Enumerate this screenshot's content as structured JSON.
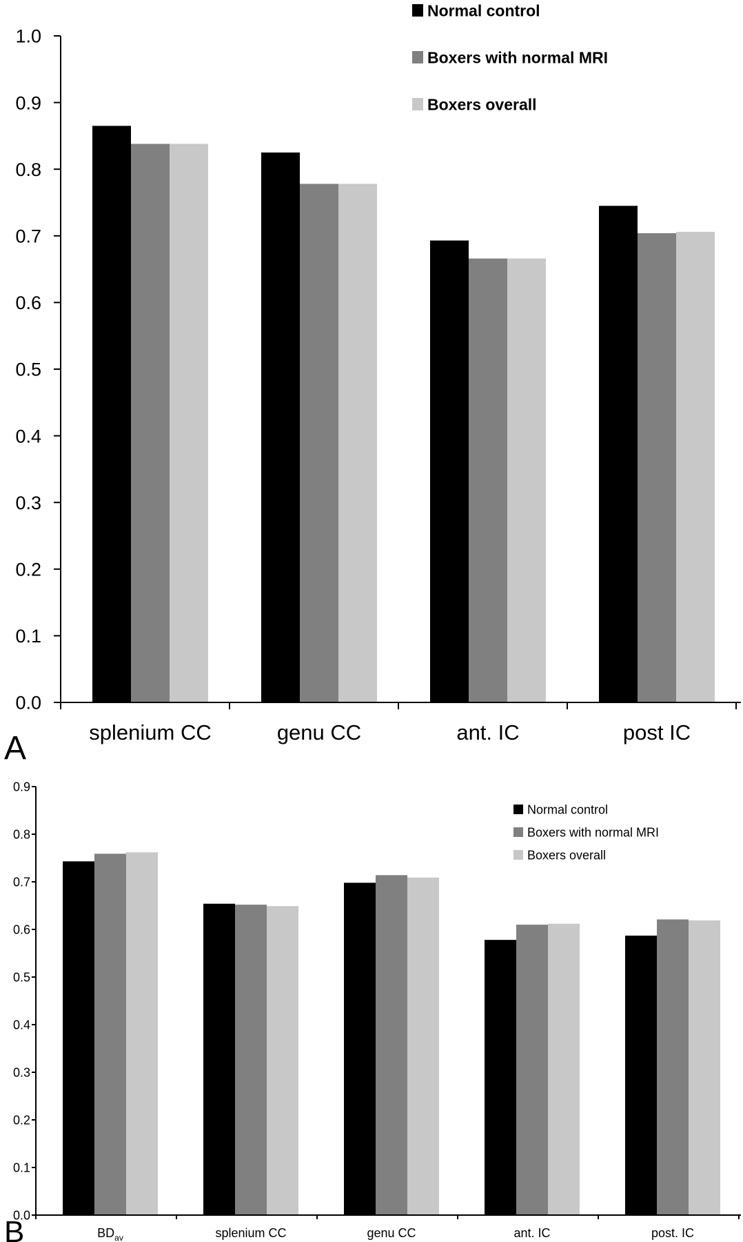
{
  "chart_data": [
    {
      "type": "bar",
      "panel_label": "A",
      "categories": [
        "splenium CC",
        "genu CC",
        "ant. IC",
        "post IC"
      ],
      "series": [
        {
          "name": "Normal control",
          "color": "#000000",
          "values": [
            0.865,
            0.825,
            0.693,
            0.745
          ]
        },
        {
          "name": "Boxers with normal MRI",
          "color": "#808080",
          "values": [
            0.838,
            0.778,
            0.666,
            0.704
          ]
        },
        {
          "name": "Boxers overall",
          "color": "#c8c8c8",
          "values": [
            0.838,
            0.778,
            0.666,
            0.706
          ]
        }
      ],
      "ylim": [
        0,
        1.0
      ],
      "yticks": [
        "0.0",
        "0.1",
        "0.2",
        "0.3",
        "0.4",
        "0.5",
        "0.6",
        "0.7",
        "0.8",
        "0.9",
        "1.0"
      ],
      "grid": false,
      "legend": "top-right"
    },
    {
      "type": "bar",
      "panel_label": "B",
      "categories": [
        "BD",
        "splenium CC",
        "genu CC",
        "ant. IC",
        "post. IC"
      ],
      "category_subscripts": [
        "av",
        "",
        "",
        "",
        ""
      ],
      "series": [
        {
          "name": "Normal control",
          "color": "#000000",
          "values": [
            0.743,
            0.654,
            0.698,
            0.578,
            0.587
          ]
        },
        {
          "name": "Boxers with normal MRI",
          "color": "#808080",
          "values": [
            0.759,
            0.652,
            0.714,
            0.61,
            0.621
          ]
        },
        {
          "name": "Boxers overall",
          "color": "#c8c8c8",
          "values": [
            0.762,
            0.649,
            0.709,
            0.612,
            0.619
          ]
        }
      ],
      "ylim": [
        0,
        0.9
      ],
      "yticks": [
        "0.0",
        "0.1",
        "0.2",
        "0.3",
        "0.4",
        "0.5",
        "0.6",
        "0.7",
        "0.8",
        "0.9"
      ],
      "grid": false,
      "legend": "top-right"
    }
  ]
}
